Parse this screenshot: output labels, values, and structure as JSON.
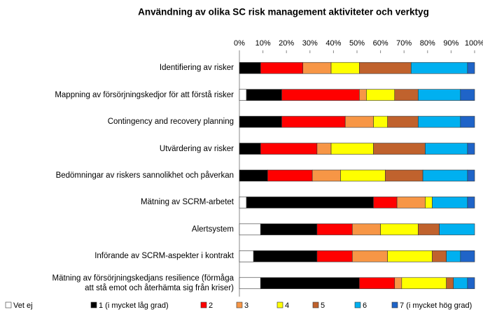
{
  "chart_data": {
    "type": "stacked_barh",
    "title": "Användning av olika SC risk management aktiviteter och verktyg",
    "categories": [
      "Identifiering av risker",
      "Mappning av försörjningskedjor för att förstå risker",
      "Contingency and recovery planning",
      "Utvärdering av risker",
      "Bedömningar av riskers sannolikhet och påverkan",
      "Mätning av SCRM-arbetet",
      "Alertsystem",
      "Införande av SCRM-aspekter i kontrakt",
      "Mätning av försörjningskedjans resilience (förmåga att stå emot och återhämta sig från kriser)"
    ],
    "series": [
      {
        "name": "Vet ej",
        "color": "#ffffff",
        "values": [
          0,
          3,
          0,
          0,
          0,
          3,
          9,
          6,
          9
        ]
      },
      {
        "name": "1 (i mycket låg grad)",
        "color": "#000000",
        "values": [
          9,
          15,
          18,
          9,
          12,
          54,
          24,
          27,
          42
        ]
      },
      {
        "name": "2",
        "color": "#ff0000",
        "values": [
          18,
          33,
          27,
          24,
          19,
          10,
          15,
          15,
          15
        ]
      },
      {
        "name": "3",
        "color": "#f79646",
        "values": [
          12,
          3,
          12,
          6,
          12,
          12,
          12,
          15,
          3
        ]
      },
      {
        "name": "4",
        "color": "#ffff00",
        "values": [
          12,
          12,
          6,
          18,
          19,
          3,
          16,
          19,
          19
        ]
      },
      {
        "name": "5",
        "color": "#c0622d",
        "values": [
          22,
          10,
          13,
          22,
          16,
          0,
          9,
          6,
          3
        ]
      },
      {
        "name": "6",
        "color": "#00b0f0",
        "values": [
          24,
          18,
          18,
          18,
          19,
          15,
          15,
          6,
          6
        ]
      },
      {
        "name": "7 (i mycket hög grad)",
        "color": "#1f64c8",
        "values": [
          3,
          6,
          6,
          3,
          3,
          3,
          0,
          6,
          3
        ]
      }
    ],
    "xlim": [
      0,
      100
    ],
    "xticks": [
      {
        "value": 0,
        "label": "0%"
      },
      {
        "value": 10,
        "label": "10%"
      },
      {
        "value": 20,
        "label": "20%"
      },
      {
        "value": 30,
        "label": "30%"
      },
      {
        "value": 40,
        "label": "40%"
      },
      {
        "value": 50,
        "label": "50%"
      },
      {
        "value": 60,
        "label": "60%"
      },
      {
        "value": 70,
        "label": "70%"
      },
      {
        "value": 80,
        "label": "80%"
      },
      {
        "value": 90,
        "label": "90%"
      },
      {
        "value": 100,
        "label": "100%"
      }
    ],
    "legend": "bottom"
  }
}
